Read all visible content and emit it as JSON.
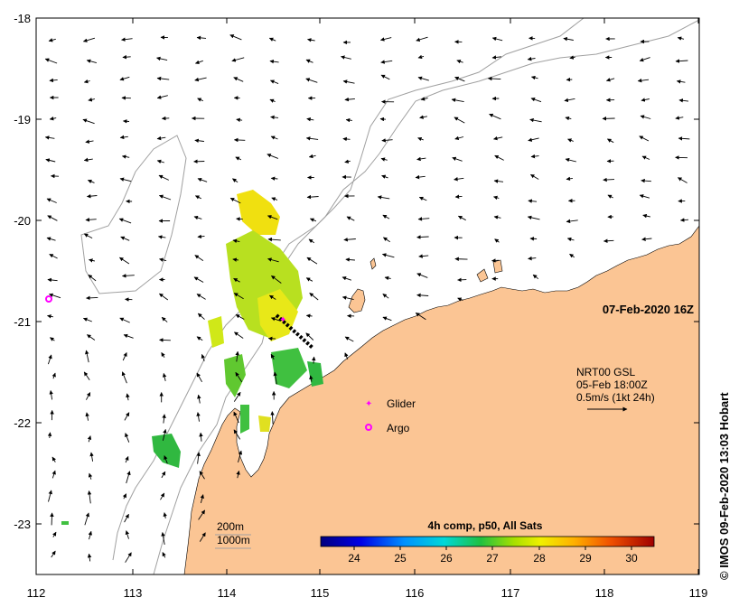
{
  "map": {
    "timestamp": "07-Feb-2020 16Z",
    "credit": "© IMOS 09-Feb-2020 13:03 Hobart",
    "colors": {
      "land": "#fbc594",
      "ocean": "#ffffff",
      "isobath": "#a0a0a0",
      "frame": "#000000"
    }
  },
  "axes": {
    "x_ticks": [
      "112",
      "113",
      "114",
      "115",
      "116",
      "117",
      "118",
      "119"
    ],
    "y_ticks": [
      "-18",
      "-19",
      "-20",
      "-21",
      "-22",
      "-23"
    ],
    "lon_range": [
      112,
      119
    ],
    "lat_range": [
      -23.5,
      -18
    ]
  },
  "isobaths": {
    "depth_1": "200m",
    "depth_2": "1000m"
  },
  "current_legend": {
    "line1": "NRT00 GSL",
    "line2": "05-Feb 18:00Z",
    "line3": "0.5m/s (1kt 24h)"
  },
  "markers": {
    "glider": {
      "label": "Glider",
      "color": "#ff00ff",
      "lon": 114.55,
      "lat": -20.95
    },
    "argo": {
      "label": "Argo",
      "color": "#ff00ff",
      "lon": 112.12,
      "lat": -20.78
    }
  },
  "colorbar": {
    "title": "4h comp, p50, All Sats",
    "ticks": [
      "24",
      "25",
      "26",
      "27",
      "28",
      "29",
      "30"
    ],
    "range": [
      23.3,
      30.5
    ]
  }
}
